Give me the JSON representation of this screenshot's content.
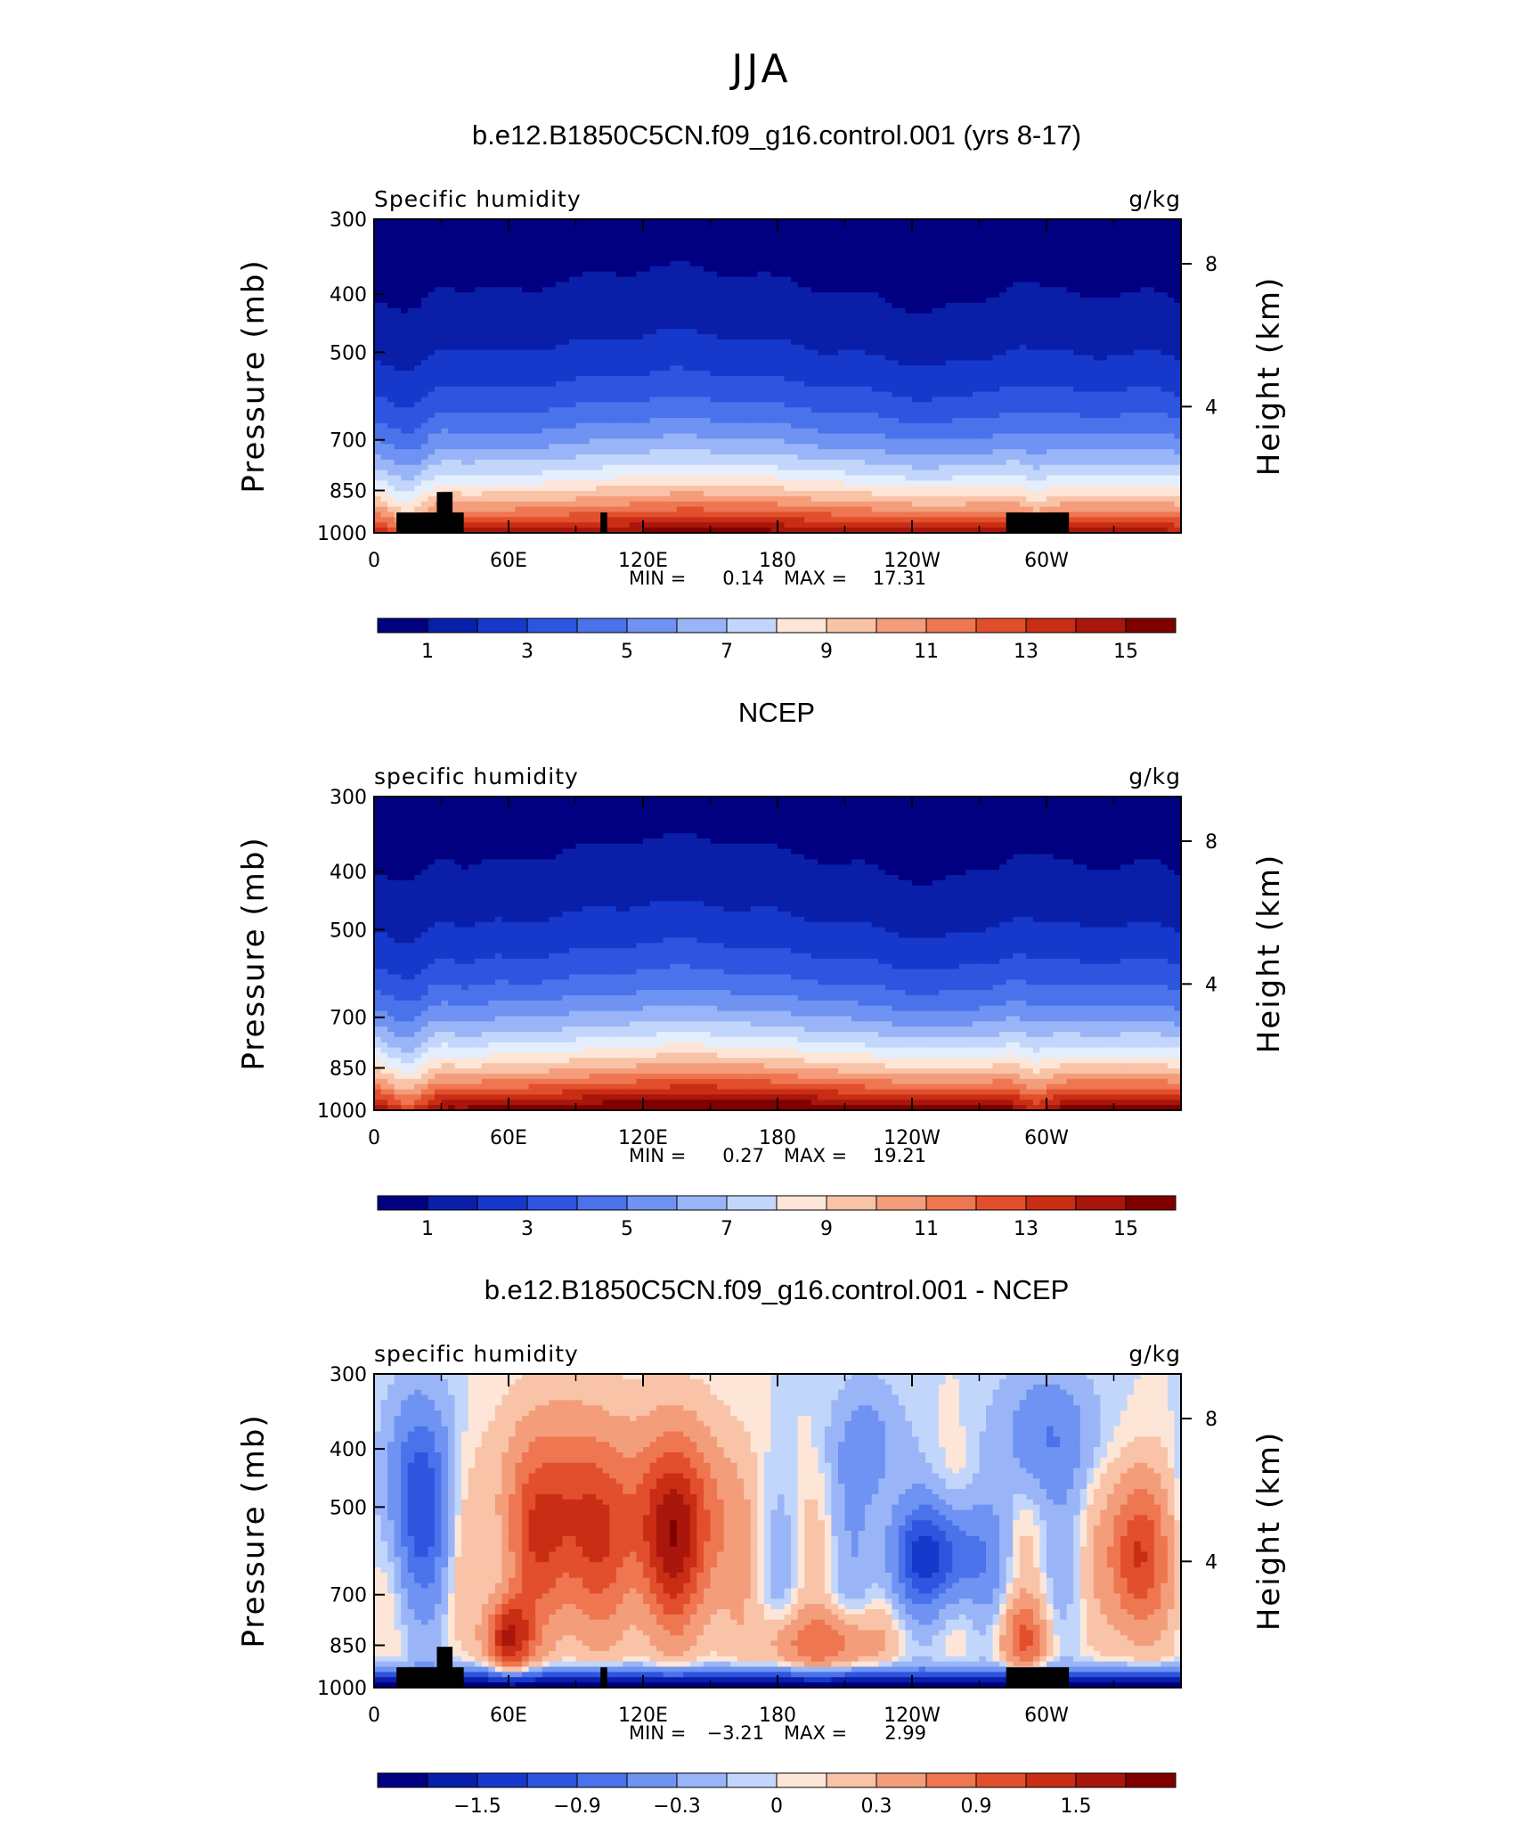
{
  "figure": {
    "title": "JJA"
  },
  "chart_data": [
    {
      "type": "heatmap",
      "title": "b.e12.B1850C5CN.f09_g16.control.001 (yrs 8-17)",
      "left_label": "Specific humidity",
      "units": "g/kg",
      "ylabel": "Pressure (mb)",
      "ylabel_right": "Height (km)",
      "yticks": [
        "300",
        "400",
        "500",
        "700",
        "850",
        "1000"
      ],
      "yticks_right": [
        "8",
        "4"
      ],
      "xticks": [
        "0",
        "60E",
        "120E",
        "180",
        "120W",
        "60W"
      ],
      "stats": {
        "min_label": "MIN =",
        "min": "0.14",
        "max_label": "MAX =",
        "max": "17.31"
      },
      "colorbar_labels": [
        "1",
        "3",
        "5",
        "7",
        "9",
        "11",
        "13",
        "15"
      ],
      "levels": [
        1,
        2,
        3,
        4,
        5,
        6,
        7,
        8,
        9,
        10,
        11,
        12,
        13,
        14,
        15,
        16
      ],
      "ylim": [
        1000,
        300
      ],
      "xlim": [
        0,
        360
      ],
      "topography": true
    },
    {
      "type": "heatmap",
      "title": "NCEP",
      "left_label": "specific humidity",
      "units": "g/kg",
      "ylabel": "Pressure (mb)",
      "ylabel_right": "Height (km)",
      "yticks": [
        "300",
        "400",
        "500",
        "700",
        "850",
        "1000"
      ],
      "yticks_right": [
        "8",
        "4"
      ],
      "xticks": [
        "0",
        "60E",
        "120E",
        "180",
        "120W",
        "60W"
      ],
      "stats": {
        "min_label": "MIN =",
        "min": "0.27",
        "max_label": "MAX =",
        "max": "19.21"
      },
      "colorbar_labels": [
        "1",
        "3",
        "5",
        "7",
        "9",
        "11",
        "13",
        "15"
      ],
      "levels": [
        1,
        2,
        3,
        4,
        5,
        6,
        7,
        8,
        9,
        10,
        11,
        12,
        13,
        14,
        15,
        16
      ],
      "ylim": [
        1000,
        300
      ],
      "xlim": [
        0,
        360
      ],
      "topography": false
    },
    {
      "type": "heatmap",
      "title": "b.e12.B1850C5CN.f09_g16.control.001 - NCEP",
      "left_label": "specific humidity",
      "units": "g/kg",
      "ylabel": "Pressure (mb)",
      "ylabel_right": "Height (km)",
      "yticks": [
        "300",
        "400",
        "500",
        "700",
        "850",
        "1000"
      ],
      "yticks_right": [
        "8",
        "4"
      ],
      "xticks": [
        "0",
        "60E",
        "120E",
        "180",
        "120W",
        "60W"
      ],
      "stats": {
        "min_label": "MIN =",
        "min": "−3.21",
        "max_label": "MAX =",
        "max": "2.99"
      },
      "colorbar_labels": [
        "−1.5",
        "−0.9",
        "−0.3",
        "0",
        "0.3",
        "0.9",
        "1.5"
      ],
      "levels": [
        -1.8,
        -1.5,
        -1.2,
        -0.9,
        -0.6,
        -0.3,
        -0.1,
        0,
        0.1,
        0.3,
        0.6,
        0.9,
        1.2,
        1.5,
        1.8
      ],
      "ylim": [
        1000,
        300
      ],
      "xlim": [
        0,
        360
      ],
      "topography": true
    }
  ],
  "palette": [
    "#000080",
    "#0a1fa8",
    "#1639cc",
    "#2e55e0",
    "#4a72ea",
    "#6f93f2",
    "#9ab5f7",
    "#c2d6fb",
    "#e4eefd",
    "#fde6d8",
    "#f9c3a8",
    "#f49d7a",
    "#ee7651",
    "#e24f2c",
    "#c92d14",
    "#a9160b",
    "#800000"
  ]
}
